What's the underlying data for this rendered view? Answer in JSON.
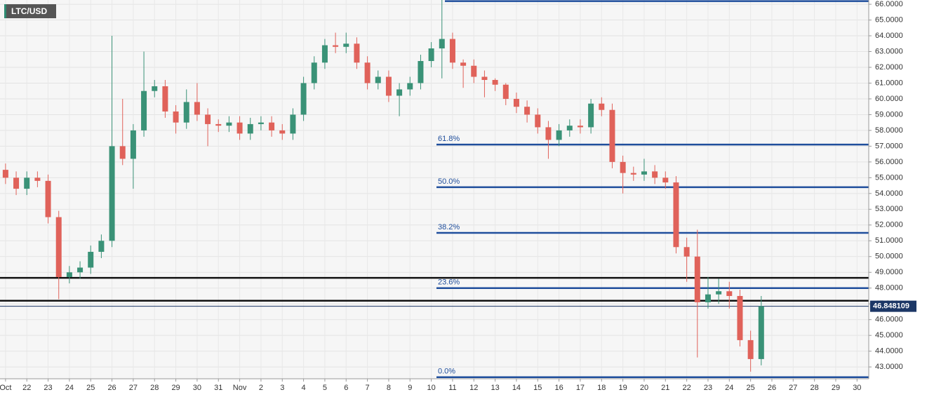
{
  "chart_data": {
    "type": "candlestick",
    "title": "LTC/USD",
    "x": [
      0,
      0.5,
      1,
      1.5,
      2,
      2.5,
      3,
      3.5,
      4,
      4.5,
      5,
      5.5,
      6,
      6.5,
      7,
      7.5,
      8,
      8.5,
      9,
      9.5,
      10,
      10.5,
      11,
      11.5,
      12,
      12.5,
      13,
      13.5,
      14,
      14.5,
      15,
      15.5,
      16,
      16.5,
      17,
      17.5,
      18,
      18.5,
      19,
      19.5,
      20,
      20.5,
      21,
      21.5,
      22,
      22.5,
      23,
      23.5,
      24,
      24.5,
      25,
      25.5,
      26,
      26.5,
      27,
      27.5,
      28,
      28.5,
      29,
      29.5,
      30,
      30.5,
      31,
      31.5,
      32,
      32.5,
      33,
      33.5,
      34,
      34.5,
      35,
      35.5
    ],
    "open": [
      55.5,
      55.0,
      54.3,
      55.0,
      54.8,
      52.5,
      48.7,
      49.0,
      49.3,
      50.3,
      51.0,
      57.0,
      56.2,
      58.0,
      60.5,
      60.8,
      59.2,
      58.5,
      59.8,
      59.0,
      58.4,
      58.3,
      58.5,
      57.8,
      58.4,
      58.5,
      58.0,
      57.8,
      59.0,
      61.0,
      62.3,
      63.4,
      63.3,
      63.5,
      62.3,
      61.0,
      61.4,
      60.2,
      60.6,
      61.0,
      62.4,
      63.2,
      63.8,
      62.3,
      62.1,
      61.4,
      61.2,
      60.9,
      60.0,
      59.5,
      59.0,
      58.2,
      57.4,
      58.0,
      58.3,
      58.2,
      59.7,
      59.3,
      56.0,
      55.3,
      55.2,
      55.4,
      55.0,
      54.7,
      50.6,
      50.0,
      47.1,
      47.6,
      47.8,
      47.5,
      44.7,
      43.5
    ],
    "high": [
      55.9,
      55.4,
      55.4,
      55.4,
      55.2,
      52.9,
      49.4,
      49.7,
      50.7,
      51.4,
      64.0,
      60.0,
      58.4,
      63.0,
      61.2,
      61.2,
      59.6,
      60.6,
      61.0,
      59.4,
      58.7,
      58.9,
      58.9,
      58.8,
      58.9,
      58.9,
      58.4,
      59.4,
      61.4,
      62.7,
      63.8,
      64.2,
      64.2,
      63.9,
      62.7,
      61.8,
      61.8,
      61.0,
      61.4,
      62.8,
      63.6,
      66.3,
      64.2,
      62.5,
      62.5,
      61.8,
      61.3,
      61.0,
      60.4,
      59.9,
      59.4,
      58.6,
      58.4,
      58.7,
      58.7,
      60.0,
      60.1,
      59.7,
      56.4,
      55.7,
      56.2,
      55.8,
      55.4,
      55.1,
      51.2,
      51.7,
      48.7,
      48.6,
      48.4,
      47.9,
      45.3,
      47.5
    ],
    "low": [
      54.6,
      53.9,
      53.9,
      54.4,
      52.1,
      47.3,
      48.3,
      48.6,
      48.9,
      49.9,
      50.6,
      55.8,
      54.3,
      57.6,
      60.1,
      58.8,
      57.8,
      58.1,
      58.6,
      57.0,
      57.9,
      57.9,
      57.4,
      57.4,
      58.0,
      57.6,
      57.4,
      57.4,
      58.6,
      60.6,
      61.9,
      62.9,
      62.9,
      61.9,
      60.6,
      60.6,
      59.8,
      58.9,
      60.2,
      60.6,
      62.0,
      61.3,
      61.9,
      60.7,
      61.0,
      60.1,
      60.5,
      59.6,
      59.1,
      58.5,
      57.8,
      56.2,
      57.0,
      57.6,
      57.8,
      57.8,
      58.9,
      55.6,
      54.0,
      54.8,
      54.8,
      54.6,
      54.3,
      50.2,
      48.4,
      43.6,
      46.7,
      47.0,
      46.7,
      44.3,
      42.7,
      43.1
    ],
    "close": [
      55.0,
      54.3,
      55.0,
      54.8,
      52.5,
      48.7,
      49.0,
      49.3,
      50.3,
      51.0,
      57.0,
      56.2,
      58.0,
      60.5,
      60.8,
      59.2,
      58.5,
      59.8,
      59.0,
      58.4,
      58.3,
      58.5,
      57.8,
      58.4,
      58.5,
      58.0,
      57.8,
      59.0,
      61.0,
      62.3,
      63.4,
      63.3,
      63.5,
      62.3,
      61.0,
      61.4,
      60.2,
      60.6,
      61.0,
      62.4,
      63.2,
      63.8,
      62.3,
      62.1,
      61.4,
      61.2,
      60.9,
      60.0,
      59.5,
      59.0,
      58.2,
      57.4,
      58.0,
      58.3,
      58.2,
      59.7,
      59.3,
      56.0,
      55.3,
      55.2,
      55.4,
      55.0,
      54.7,
      50.6,
      50.0,
      47.1,
      47.6,
      47.8,
      47.5,
      44.7,
      43.5,
      46.85
    ],
    "up_color": "#3a9277",
    "down_color": "#e0625a",
    "last_price": {
      "value": 46.848109,
      "label": "46.848109"
    },
    "fib_levels": [
      {
        "value": 57.1,
        "label": "61.8%"
      },
      {
        "value": 54.4,
        "label": "50.0%"
      },
      {
        "value": 51.5,
        "label": "38.2%"
      },
      {
        "value": 48.0,
        "label": "23.6%"
      },
      {
        "value": 42.35,
        "label": "0.0%"
      }
    ],
    "fib_top": 66.2,
    "fib_color": "#1f4e9c",
    "support_levels": [
      48.65,
      47.2
    ],
    "xlim": [
      -0.26,
      40.55
    ],
    "ylim": [
      42.25,
      66.27
    ],
    "xticks": [
      {
        "value": 0,
        "label": "Oct"
      },
      {
        "value": 1,
        "label": "22"
      },
      {
        "value": 2,
        "label": "23"
      },
      {
        "value": 3,
        "label": "24"
      },
      {
        "value": 4,
        "label": "25"
      },
      {
        "value": 5,
        "label": "26"
      },
      {
        "value": 6,
        "label": "27"
      },
      {
        "value": 7,
        "label": "28"
      },
      {
        "value": 8,
        "label": "29"
      },
      {
        "value": 9,
        "label": "30"
      },
      {
        "value": 10,
        "label": "31"
      },
      {
        "value": 11,
        "label": "Nov"
      },
      {
        "value": 12,
        "label": "2"
      },
      {
        "value": 13,
        "label": "3"
      },
      {
        "value": 14,
        "label": "4"
      },
      {
        "value": 15,
        "label": "5"
      },
      {
        "value": 16,
        "label": "6"
      },
      {
        "value": 17,
        "label": "7"
      },
      {
        "value": 18,
        "label": "8"
      },
      {
        "value": 19,
        "label": "9"
      },
      {
        "value": 20,
        "label": "10"
      },
      {
        "value": 21,
        "label": "11"
      },
      {
        "value": 22,
        "label": "12"
      },
      {
        "value": 23,
        "label": "13"
      },
      {
        "value": 24,
        "label": "14"
      },
      {
        "value": 25,
        "label": "15"
      },
      {
        "value": 26,
        "label": "16"
      },
      {
        "value": 27,
        "label": "17"
      },
      {
        "value": 28,
        "label": "18"
      },
      {
        "value": 29,
        "label": "19"
      },
      {
        "value": 30,
        "label": "20"
      },
      {
        "value": 31,
        "label": "21"
      },
      {
        "value": 32,
        "label": "22"
      },
      {
        "value": 33,
        "label": "23"
      },
      {
        "value": 34,
        "label": "24"
      },
      {
        "value": 35,
        "label": "25"
      },
      {
        "value": 36,
        "label": "26"
      },
      {
        "value": 37,
        "label": "27"
      },
      {
        "value": 38,
        "label": "28"
      },
      {
        "value": 39,
        "label": "29"
      },
      {
        "value": 40,
        "label": "30"
      }
    ],
    "yticks": [
      {
        "value": 43,
        "label": "43.0000"
      },
      {
        "value": 44,
        "label": "44.0000"
      },
      {
        "value": 45,
        "label": "45.0000"
      },
      {
        "value": 46,
        "label": "46.0000"
      },
      {
        "value": 47,
        "label": "47.0000"
      },
      {
        "value": 48,
        "label": "48.0000"
      },
      {
        "value": 49,
        "label": "49.0000"
      },
      {
        "value": 50,
        "label": "50.0000"
      },
      {
        "value": 51,
        "label": "51.0000"
      },
      {
        "value": 52,
        "label": "52.0000"
      },
      {
        "value": 53,
        "label": "53.0000"
      },
      {
        "value": 54,
        "label": "54.0000"
      },
      {
        "value": 55,
        "label": "55.0000"
      },
      {
        "value": 56,
        "label": "56.0000"
      },
      {
        "value": 57,
        "label": "57.0000"
      },
      {
        "value": 58,
        "label": "58.0000"
      },
      {
        "value": 59,
        "label": "59.0000"
      },
      {
        "value": 60,
        "label": "60.0000"
      },
      {
        "value": 61,
        "label": "61.0000"
      },
      {
        "value": 62,
        "label": "62.0000"
      },
      {
        "value": 63,
        "label": "63.0000"
      },
      {
        "value": 64,
        "label": "64.0000"
      },
      {
        "value": 65,
        "label": "65.0000"
      },
      {
        "value": 66,
        "label": "66.0000"
      }
    ],
    "grid": true
  }
}
